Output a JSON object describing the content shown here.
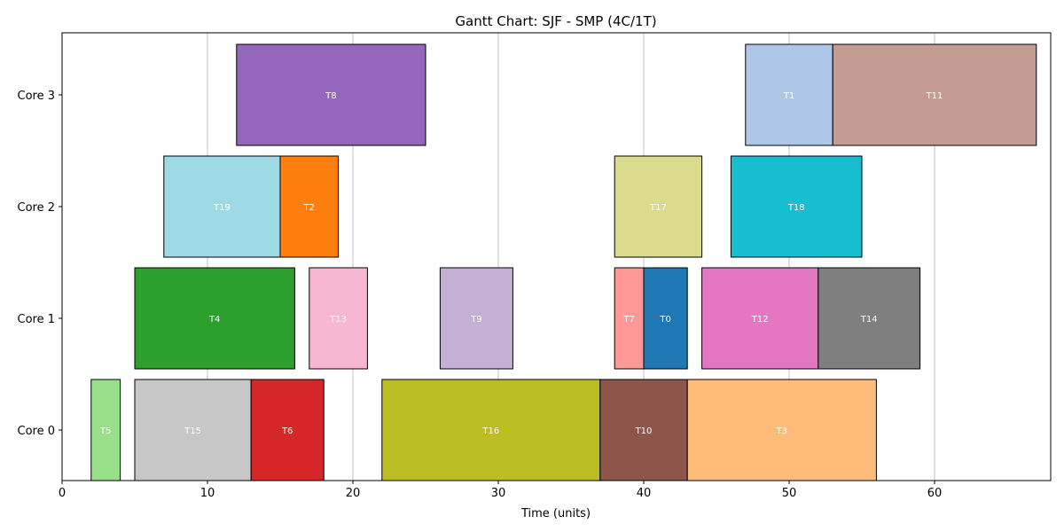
{
  "chart_data": {
    "type": "gantt",
    "title": "Gantt Chart: SJF - SMP (4C/1T)",
    "xlabel": "Time (units)",
    "ylabel": "",
    "xlim": [
      0,
      68
    ],
    "x_ticks": [
      0,
      10,
      20,
      30,
      40,
      50,
      60
    ],
    "grid": "vertical",
    "categories": [
      "Core 0",
      "Core 1",
      "Core 2",
      "Core 3"
    ],
    "tasks": [
      {
        "label": "T5",
        "core": "Core 0",
        "start": 2,
        "end": 4,
        "color": "#98df8a"
      },
      {
        "label": "T15",
        "core": "Core 0",
        "start": 5,
        "end": 13,
        "color": "#c7c7c7"
      },
      {
        "label": "T6",
        "core": "Core 0",
        "start": 13,
        "end": 18,
        "color": "#d62728"
      },
      {
        "label": "T16",
        "core": "Core 0",
        "start": 22,
        "end": 37,
        "color": "#bcbd22"
      },
      {
        "label": "T10",
        "core": "Core 0",
        "start": 37,
        "end": 43,
        "color": "#8c564b"
      },
      {
        "label": "T3",
        "core": "Core 0",
        "start": 43,
        "end": 56,
        "color": "#ffbb78"
      },
      {
        "label": "T4",
        "core": "Core 1",
        "start": 5,
        "end": 16,
        "color": "#2ca02c"
      },
      {
        "label": "T13",
        "core": "Core 1",
        "start": 17,
        "end": 21,
        "color": "#f7b6d2"
      },
      {
        "label": "T9",
        "core": "Core 1",
        "start": 26,
        "end": 31,
        "color": "#c5b0d5"
      },
      {
        "label": "T7",
        "core": "Core 1",
        "start": 38,
        "end": 40,
        "color": "#ff9896"
      },
      {
        "label": "T0",
        "core": "Core 1",
        "start": 40,
        "end": 43,
        "color": "#1f77b4"
      },
      {
        "label": "T12",
        "core": "Core 1",
        "start": 44,
        "end": 52,
        "color": "#e377c2"
      },
      {
        "label": "T14",
        "core": "Core 1",
        "start": 52,
        "end": 59,
        "color": "#7f7f7f"
      },
      {
        "label": "T19",
        "core": "Core 2",
        "start": 7,
        "end": 15,
        "color": "#9edae5"
      },
      {
        "label": "T2",
        "core": "Core 2",
        "start": 15,
        "end": 19,
        "color": "#ff7f0e"
      },
      {
        "label": "T17",
        "core": "Core 2",
        "start": 38,
        "end": 44,
        "color": "#dbdb8d"
      },
      {
        "label": "T18",
        "core": "Core 2",
        "start": 46,
        "end": 55,
        "color": "#17becf"
      },
      {
        "label": "T8",
        "core": "Core 3",
        "start": 12,
        "end": 25,
        "color": "#9467bd"
      },
      {
        "label": "T1",
        "core": "Core 3",
        "start": 47,
        "end": 53,
        "color": "#aec7e8"
      },
      {
        "label": "T11",
        "core": "Core 3",
        "start": 53,
        "end": 67,
        "color": "#c49c94"
      }
    ]
  }
}
